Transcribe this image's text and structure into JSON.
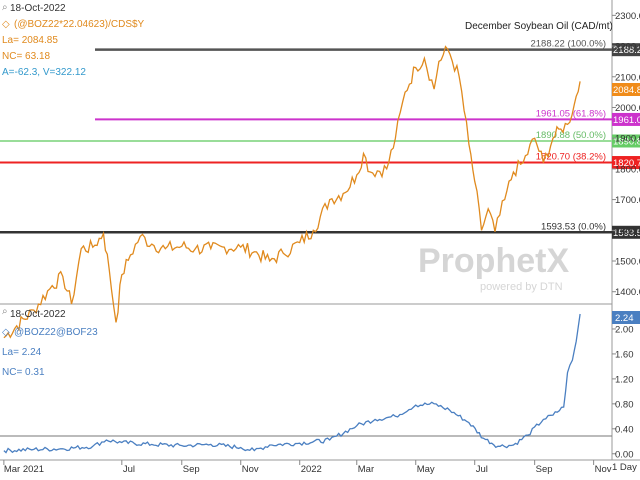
{
  "title": "December Soybean Oil (CAD/mt)",
  "top_panel": {
    "date": "18-Oct-2022",
    "symbol": "(@BOZ22*22.04623)/CDS$Y",
    "last": "La= 2084.85",
    "net_change": "NC= 63.18",
    "a_v": "A=-62.3, V=322.12",
    "ylabels": [
      "2300.00",
      "2200.00",
      "2100.00",
      "2000.00",
      "1900.00",
      "1800.00",
      "1700.00",
      "1600.00",
      "1500.00",
      "1400.00"
    ],
    "last_badge": "2084.85"
  },
  "bottom_panel": {
    "date": "18-Oct-2022",
    "symbol": "@BOZ22@BOF23",
    "last": "La= 2.24",
    "net_change": "NC= 0.31",
    "ylabels": [
      "2.00",
      "1.60",
      "1.20",
      "0.80",
      "0.40",
      "0.00"
    ],
    "last_badge": "2.24"
  },
  "fib_levels": [
    {
      "label": "2188.22 (100.0%)",
      "badge": "2188.22",
      "color": "#555555",
      "badge_color": "#444444"
    },
    {
      "label": "1961.05 (61.8%)",
      "badge": "1961.05",
      "color": "#cc33cc",
      "badge_color": "#cc33cc"
    },
    {
      "label": "1890.88 (50.0%)",
      "badge": "1890.88",
      "color": "#99dd99",
      "badge_color": "#66cc66"
    },
    {
      "label": "1820.70 (38.2%)",
      "badge": "1820.70",
      "color": "#ee2222",
      "badge_color": "#ee2222"
    },
    {
      "label": "1593.53 (0.0%)",
      "badge": "1593.53",
      "color": "#333333",
      "badge_color": "#333333"
    }
  ],
  "xlabels": [
    "Mar 2021",
    "Jul",
    "Sep",
    "Nov",
    "2022",
    "Mar",
    "May",
    "Jul",
    "Sep",
    "Nov"
  ],
  "interval": "1 Day",
  "watermark": {
    "brand": "ProphetX",
    "sub": "powered by DTN"
  },
  "colors": {
    "price": "#e08a1e",
    "spread": "#4a7fc1",
    "accent_orange": "#f08c1a",
    "accent_blue": "#4a7fc1",
    "axis": "#888888"
  },
  "chart_data": [
    {
      "type": "line",
      "title": "December Soybean Oil (CAD/mt)",
      "series": [
        {
          "name": "(@BOZ22*22.04623)/CDS$Y",
          "points": [
            [
              "2021-03-01",
              1250
            ],
            [
              "2021-04-01",
              1340
            ],
            [
              "2021-04-20",
              1420
            ],
            [
              "2021-05-01",
              1450
            ],
            [
              "2021-05-10",
              1360
            ],
            [
              "2021-05-20",
              1540
            ],
            [
              "2021-06-01",
              1545
            ],
            [
              "2021-06-12",
              1590
            ],
            [
              "2021-06-18",
              1470
            ],
            [
              "2021-06-25",
              1300
            ],
            [
              "2021-07-01",
              1455
            ],
            [
              "2021-07-10",
              1520
            ],
            [
              "2021-07-20",
              1580
            ],
            [
              "2021-08-01",
              1555
            ],
            [
              "2021-08-15",
              1540
            ],
            [
              "2021-09-01",
              1548
            ],
            [
              "2021-09-15",
              1540
            ],
            [
              "2021-10-01",
              1540
            ],
            [
              "2021-10-15",
              1545
            ],
            [
              "2021-11-01",
              1545
            ],
            [
              "2021-11-15",
              1530
            ],
            [
              "2021-12-01",
              1500
            ],
            [
              "2021-12-15",
              1525
            ],
            [
              "2022-01-01",
              1560
            ],
            [
              "2022-01-15",
              1600
            ],
            [
              "2022-02-01",
              1700
            ],
            [
              "2022-02-15",
              1720
            ],
            [
              "2022-03-01",
              1780
            ],
            [
              "2022-03-08",
              1850
            ],
            [
              "2022-03-15",
              1790
            ],
            [
              "2022-04-01",
              1800
            ],
            [
              "2022-04-10",
              1900
            ],
            [
              "2022-04-20",
              2050
            ],
            [
              "2022-05-01",
              2130
            ],
            [
              "2022-05-10",
              2160
            ],
            [
              "2022-05-20",
              2060
            ],
            [
              "2022-05-25",
              2150
            ],
            [
              "2022-06-03",
              2190
            ],
            [
              "2022-06-15",
              2100
            ],
            [
              "2022-06-25",
              1880
            ],
            [
              "2022-07-01",
              1760
            ],
            [
              "2022-07-08",
              1600
            ],
            [
              "2022-07-15",
              1670
            ],
            [
              "2022-07-22",
              1595
            ],
            [
              "2022-08-01",
              1700
            ],
            [
              "2022-08-10",
              1790
            ],
            [
              "2022-08-20",
              1820
            ],
            [
              "2022-09-01",
              1900
            ],
            [
              "2022-09-10",
              1820
            ],
            [
              "2022-09-20",
              1900
            ],
            [
              "2022-09-28",
              1930
            ],
            [
              "2022-10-05",
              1945
            ],
            [
              "2022-10-12",
              2010
            ],
            [
              "2022-10-18",
              2085
            ]
          ]
        }
      ],
      "ylim": [
        1360,
        2350
      ],
      "yticks": [
        2300,
        2200,
        2100,
        2000,
        1900,
        1800,
        1700,
        1600,
        1500,
        1400
      ],
      "xlim": [
        "2021-02-25",
        "2022-11-20"
      ],
      "fibonacci": [
        2188.22,
        1961.05,
        1890.88,
        1820.7,
        1593.53
      ]
    },
    {
      "type": "line",
      "series": [
        {
          "name": "@BOZ22@BOF23",
          "points": [
            [
              "2021-03-01",
              0.05
            ],
            [
              "2021-04-01",
              0.07
            ],
            [
              "2021-05-01",
              0.08
            ],
            [
              "2021-06-01",
              0.12
            ],
            [
              "2021-06-15",
              0.22
            ],
            [
              "2021-07-01",
              0.18
            ],
            [
              "2021-08-01",
              0.15
            ],
            [
              "2021-09-01",
              0.13
            ],
            [
              "2021-10-01",
              0.15
            ],
            [
              "2021-11-01",
              0.1
            ],
            [
              "2021-11-15",
              0.05
            ],
            [
              "2021-12-01",
              0.14
            ],
            [
              "2022-01-01",
              0.17
            ],
            [
              "2022-02-01",
              0.22
            ],
            [
              "2022-03-01",
              0.45
            ],
            [
              "2022-03-20",
              0.55
            ],
            [
              "2022-04-10",
              0.6
            ],
            [
              "2022-05-01",
              0.78
            ],
            [
              "2022-05-20",
              0.8
            ],
            [
              "2022-06-05",
              0.7
            ],
            [
              "2022-06-25",
              0.5
            ],
            [
              "2022-07-10",
              0.25
            ],
            [
              "2022-07-25",
              0.12
            ],
            [
              "2022-08-10",
              0.14
            ],
            [
              "2022-08-25",
              0.3
            ],
            [
              "2022-09-10",
              0.55
            ],
            [
              "2022-09-20",
              0.62
            ],
            [
              "2022-10-01",
              0.75
            ],
            [
              "2022-10-05",
              1.3
            ],
            [
              "2022-10-10",
              1.5
            ],
            [
              "2022-10-14",
              1.8
            ],
            [
              "2022-10-18",
              2.24
            ]
          ]
        }
      ],
      "ylim": [
        -0.1,
        2.4
      ],
      "yticks": [
        2.0,
        1.6,
        1.2,
        0.8,
        0.4,
        0.0
      ],
      "xlim": [
        "2021-02-25",
        "2022-11-20"
      ]
    }
  ]
}
